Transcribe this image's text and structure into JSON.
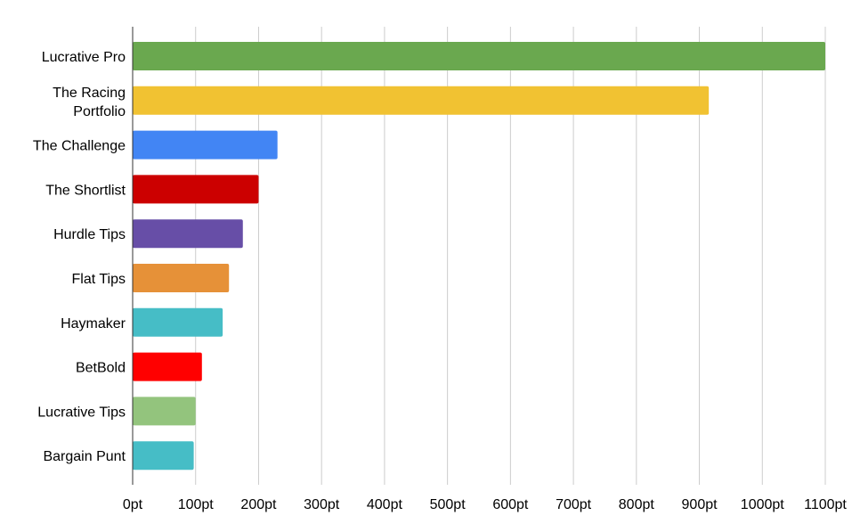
{
  "chart_data": {
    "type": "bar",
    "orientation": "horizontal",
    "title": "",
    "xlabel": "",
    "ylabel": "",
    "xlim": [
      0,
      1100
    ],
    "x_ticks": [
      "0pt",
      "100pt",
      "200pt",
      "300pt",
      "400pt",
      "500pt",
      "600pt",
      "700pt",
      "800pt",
      "900pt",
      "1000pt",
      "1100pt"
    ],
    "grid": "vertical",
    "legend": "none",
    "categories": [
      "Lucrative Pro",
      "The Racing Portfolio",
      "The Challenge",
      "The Shortlist",
      "Hurdle Tips",
      "Flat Tips",
      "Haymaker",
      "BetBold",
      "Lucrative Tips",
      "Bargain Punt"
    ],
    "category_label_lines": [
      [
        "Lucrative Pro"
      ],
      [
        "The Racing",
        "Portfolio"
      ],
      [
        "The Challenge"
      ],
      [
        "The Shortlist"
      ],
      [
        "Hurdle Tips"
      ],
      [
        "Flat Tips"
      ],
      [
        "Haymaker"
      ],
      [
        "BetBold"
      ],
      [
        "Lucrative Tips"
      ],
      [
        "Bargain Punt"
      ]
    ],
    "values": [
      1100,
      915,
      230,
      200,
      175,
      153,
      143,
      110,
      100,
      97
    ],
    "colors": [
      "#6aa84f",
      "#f1c232",
      "#4285f4",
      "#cc0000",
      "#674ea7",
      "#e69138",
      "#46bdc6",
      "#ff0000",
      "#93c47d",
      "#46bdc6"
    ]
  }
}
